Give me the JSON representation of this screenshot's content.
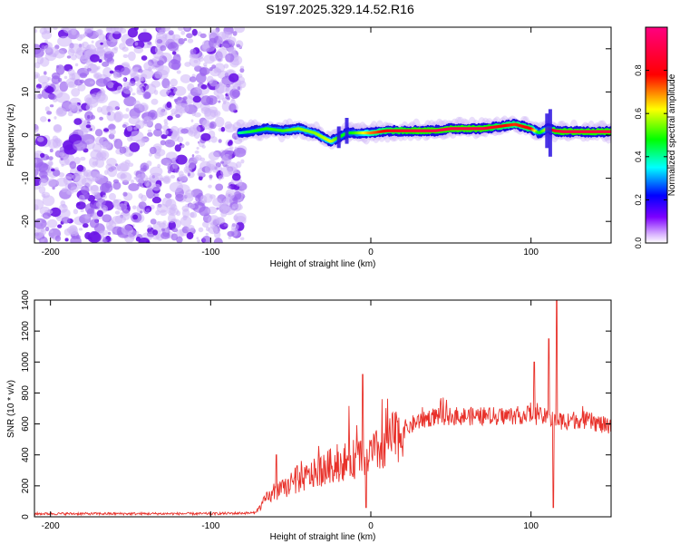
{
  "title": "S197.2025.329.14.52.R16",
  "chart_data": [
    {
      "type": "heatmap",
      "xlabel": "Height of straight line (km)",
      "ylabel": "Frequency (Hz)",
      "xlim": [
        -210,
        150
      ],
      "ylim": [
        -25,
        25
      ],
      "xticks": [
        -200,
        -100,
        0,
        100
      ],
      "yticks": [
        -20,
        -10,
        0,
        10,
        20
      ],
      "colorbar": {
        "label": "Normalized spectral amplitude",
        "range": [
          0,
          1
        ],
        "ticks": [
          0.0,
          0.2,
          0.4,
          0.6,
          0.8
        ],
        "tick_labels": [
          "0.0",
          "0.2",
          "0.4",
          "0.6",
          "0.8"
        ],
        "colors": [
          "#ffffff",
          "#7d00ff",
          "#0000ff",
          "#00ffff",
          "#00ff00",
          "#ffff00",
          "#ff0000",
          "#ff0080"
        ]
      },
      "noise_region": {
        "x": [
          -210,
          -80
        ],
        "y": [
          -25,
          25
        ],
        "typical_amplitude": 0.15
      },
      "signal_trace": {
        "x": [
          -82,
          -75,
          -65,
          -55,
          -45,
          -35,
          -25,
          -20,
          -15,
          -10,
          -5,
          0,
          10,
          20,
          30,
          40,
          50,
          60,
          70,
          80,
          90,
          100,
          105,
          110,
          115,
          120,
          130,
          140,
          150
        ],
        "freq": [
          0.5,
          0.8,
          1.5,
          1.0,
          1.5,
          0.5,
          -1.5,
          -0.5,
          0.5,
          0.5,
          0.5,
          0.5,
          1.0,
          1.0,
          1.0,
          1.0,
          1.5,
          1.5,
          1.5,
          2.0,
          2.5,
          1.5,
          0.5,
          1.5,
          1.0,
          0.8,
          0.8,
          0.8,
          0.8
        ],
        "amplitude": [
          0.4,
          0.45,
          0.5,
          0.5,
          0.55,
          0.55,
          0.6,
          0.5,
          0.45,
          0.5,
          0.6,
          0.7,
          0.8,
          0.85,
          0.9,
          0.9,
          0.9,
          0.9,
          0.9,
          0.8,
          0.75,
          0.8,
          0.45,
          0.6,
          0.85,
          0.9,
          0.9,
          0.9,
          0.9
        ]
      }
    },
    {
      "type": "line",
      "xlabel": "Height of straight line (km)",
      "ylabel": "SNR (10 * v/v)",
      "xlim": [
        -210,
        150
      ],
      "ylim": [
        0,
        1400
      ],
      "xticks": [
        -200,
        -100,
        0,
        100
      ],
      "yticks": [
        0,
        200,
        400,
        600,
        800,
        1000,
        1200,
        1400
      ],
      "series": [
        {
          "name": "SNR",
          "color": "#e8312a",
          "x": [
            -210,
            -150,
            -100,
            -72,
            -65,
            -55,
            -45,
            -35,
            -25,
            -15,
            -5,
            0,
            5,
            10,
            20,
            30,
            40,
            60,
            80,
            100,
            110,
            120,
            130,
            140,
            150
          ],
          "base": [
            20,
            20,
            20,
            25,
            120,
            180,
            230,
            280,
            330,
            360,
            390,
            400,
            430,
            470,
            560,
            620,
            650,
            650,
            650,
            660,
            640,
            620,
            630,
            610,
            570
          ],
          "spikes": [
            {
              "x": -59,
              "value": 400
            },
            {
              "x": -46,
              "value": 330
            },
            {
              "x": -5,
              "value": 920
            },
            {
              "x": -3,
              "value": 60
            },
            {
              "x": 102,
              "value": 1000
            },
            {
              "x": 111,
              "value": 1150
            },
            {
              "x": 114,
              "value": 60
            },
            {
              "x": 116,
              "value": 1400
            }
          ]
        }
      ]
    }
  ]
}
